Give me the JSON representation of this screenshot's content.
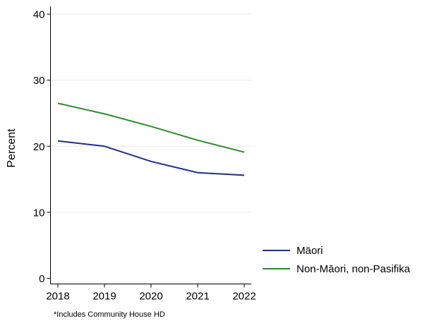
{
  "chart_data": {
    "type": "line",
    "title": "",
    "xlabel": "",
    "ylabel": "Percent",
    "x": [
      2018,
      2019,
      2020,
      2021,
      2022
    ],
    "ylim": [
      0,
      40
    ],
    "yticks": [
      0,
      10,
      20,
      30,
      40
    ],
    "grid": true,
    "legend_position": "right",
    "series": [
      {
        "name": "Māori",
        "color": "#1f2e8c",
        "values": [
          20.8,
          20.0,
          17.7,
          16.0,
          15.6
        ]
      },
      {
        "name": "Non-Māori, non-Pasifika",
        "color": "#2a8c2a",
        "values": [
          26.5,
          24.9,
          23.0,
          20.9,
          19.1
        ]
      }
    ],
    "footnote": "*Includes Community House HD"
  }
}
